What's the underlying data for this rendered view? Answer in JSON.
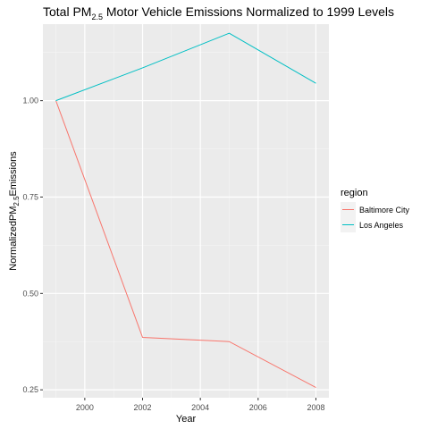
{
  "chart_data": {
    "type": "line",
    "title_main": "Total PM",
    "title_sub": "2.5",
    "title_rest": " Motor Vehicle Emissions Normalized to 1999 Levels",
    "xlabel": "Year",
    "ylabel_main": "NormalizedPM",
    "ylabel_sub": "2.5",
    "ylabel_rest": "Emissions",
    "xlim": [
      1998.55,
      2008.45
    ],
    "ylim": [
      0.2295,
      1.1985
    ],
    "x_ticks": [
      2000,
      2002,
      2004,
      2006,
      2008
    ],
    "x_tick_labels": [
      "2000",
      "2002",
      "2004",
      "2006",
      "2008"
    ],
    "y_ticks": [
      0.25,
      0.5,
      0.75,
      1.0
    ],
    "y_tick_labels": [
      "0.25",
      "0.50",
      "0.75",
      "1.00"
    ],
    "legend_title": "region",
    "legend_position": "right",
    "panel_background": "#ebebeb",
    "grid": true,
    "series": [
      {
        "name": "Baltimore City",
        "color": "#f8766d",
        "x": [
          1999,
          2002,
          2005,
          2008
        ],
        "y": [
          1.0,
          0.386,
          0.375,
          0.256
        ]
      },
      {
        "name": "Los Angeles",
        "color": "#00bfc4",
        "x": [
          1999,
          2002,
          2005,
          2008
        ],
        "y": [
          1.0,
          1.085,
          1.175,
          1.045
        ]
      }
    ]
  }
}
